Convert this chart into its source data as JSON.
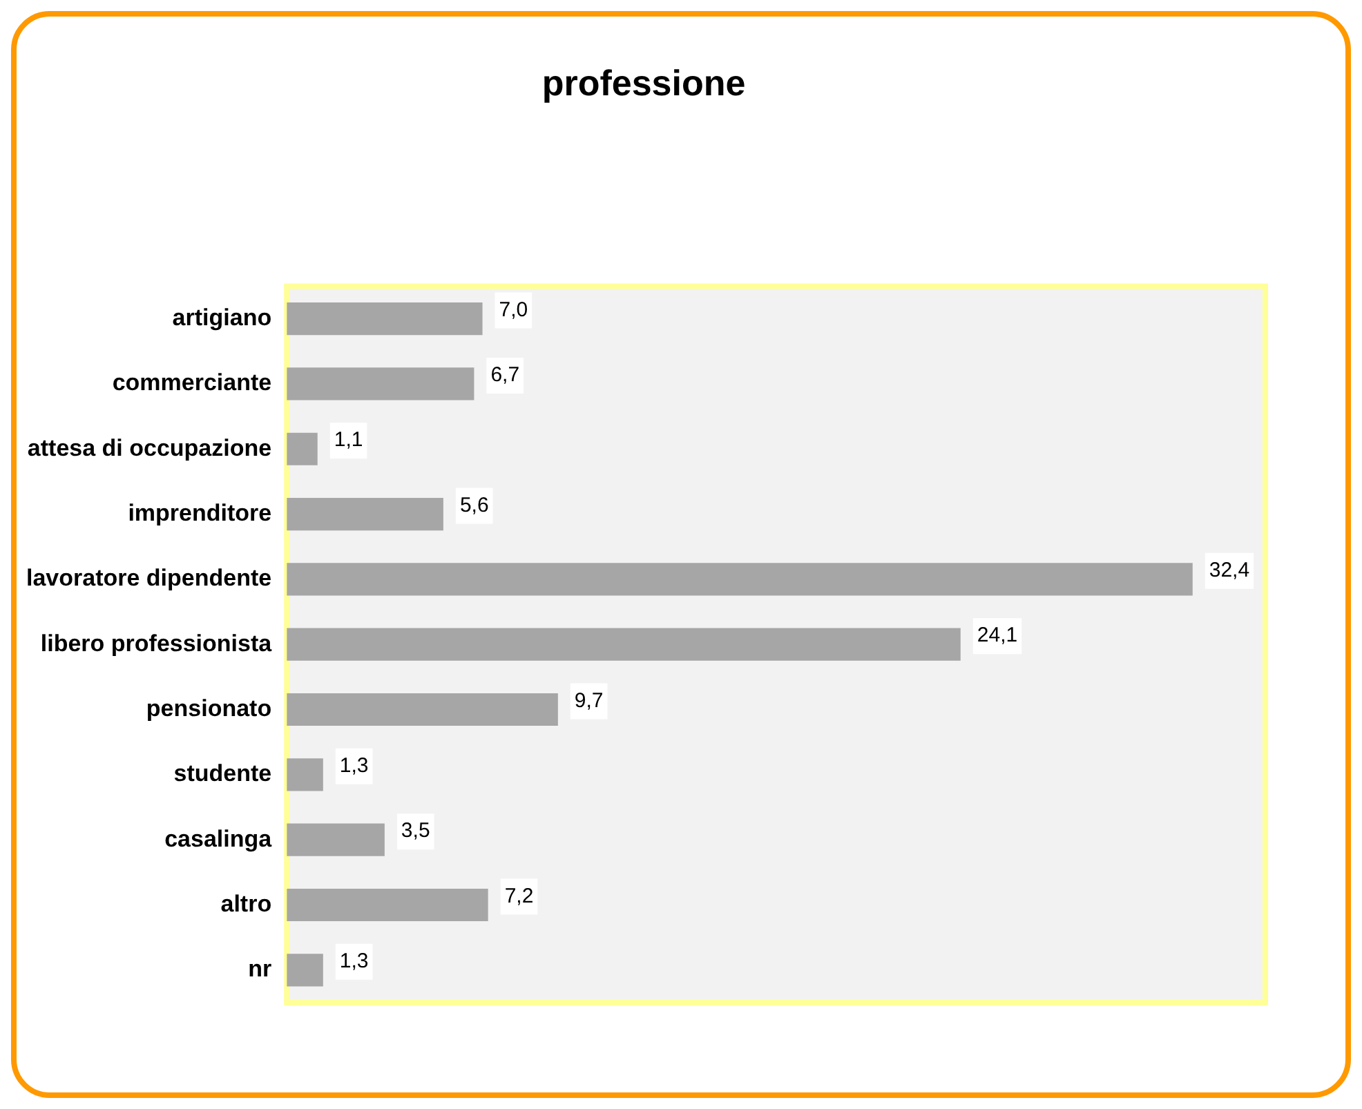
{
  "chart_data": {
    "type": "bar",
    "title": "professione",
    "orientation": "horizontal",
    "categories": [
      "artigiano",
      "commerciante",
      "attesa di occupazione",
      "imprenditore",
      "lavoratore dipendente",
      "libero professionista",
      "pensionato",
      "studente",
      "casalinga",
      "altro",
      "nr"
    ],
    "values": [
      7.0,
      6.7,
      1.1,
      5.6,
      32.4,
      24.1,
      9.7,
      1.3,
      3.5,
      7.2,
      1.3
    ],
    "value_labels": [
      "7,0",
      "6,7",
      "1,1",
      "5,6",
      "32,4",
      "24,1",
      "9,7",
      "1,3",
      "3,5",
      "7,2",
      "1,3"
    ],
    "color": "#a6a6a6",
    "grid": false,
    "legend": false
  }
}
